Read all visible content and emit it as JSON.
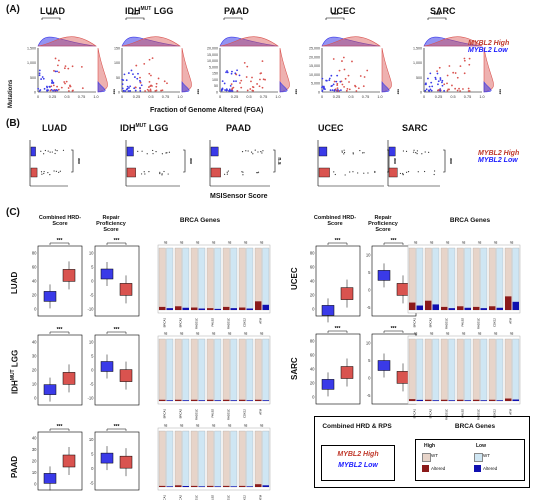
{
  "panelA": {
    "letter": "(A)",
    "ylabel": "Mutations",
    "xlabel": "Fraction of Genome Altered (FGA)",
    "sig": "***",
    "cancers": [
      {
        "name": "LUAD",
        "sup": "",
        "top_sig": "***",
        "yticks": [
          "1,500",
          "1,000",
          "500",
          "0"
        ]
      },
      {
        "name": "IDH",
        "sup": "MUT",
        "suffix": " LGG",
        "top_sig": "***",
        "yticks": [
          "150",
          "100",
          "50",
          "0"
        ]
      },
      {
        "name": "PAAD",
        "sup": "",
        "top_sig": "*",
        "yticks": [
          "20,000",
          "15,000",
          "10,000",
          "5,000",
          "150",
          "100",
          "50",
          "0"
        ]
      },
      {
        "name": "UCEC",
        "sup": "",
        "top_sig": "***",
        "yticks": [
          "25,000",
          "20,000",
          "15,000",
          "10,000",
          "5,000",
          "0"
        ]
      },
      {
        "name": "SARC",
        "sup": "",
        "top_sig": "***",
        "yticks": [
          "1,500",
          "1,000",
          "500",
          "0"
        ]
      }
    ],
    "xticks": [
      "0",
      "0.25",
      "0.5",
      "0.75",
      "1.0"
    ],
    "legend_high": "MYBL2 High",
    "legend_low": "MYBL2 Low"
  },
  "panelB": {
    "letter": "(B)",
    "xlabel": "MSISensor Score",
    "cancers": [
      {
        "name": "LUAD",
        "sup": "",
        "sig": "***"
      },
      {
        "name": "IDH",
        "sup": "MUT",
        "suffix": " LGG",
        "sig": "***"
      },
      {
        "name": "PAAD",
        "sup": "",
        "sig": "n.s"
      },
      {
        "name": "UCEC",
        "sup": "",
        "sig": "***"
      },
      {
        "name": "SARC",
        "sup": "",
        "sig": "***"
      }
    ],
    "legend_high": "MYBL2 High",
    "legend_low": "MYBL2 Low"
  },
  "panelC": {
    "letter": "(C)",
    "col_hrd": "Combined HRD-Score",
    "col_rps": "Repair Proficiency Score",
    "col_brca": "BRCA Genes",
    "sig": "***",
    "ns": "ns",
    "star": "*",
    "genes": [
      "BRCA1",
      "BRCA2",
      "RAD51C",
      "PALB2",
      "RAD51C",
      "CDK12",
      "ATM"
    ],
    "rows": [
      {
        "name": "LUAD",
        "sup": "",
        "hrd_ticks": [
          "80",
          "60",
          "40",
          "20",
          "0"
        ],
        "rps_ticks": [
          "10",
          "5",
          "0",
          "-5",
          "-10"
        ]
      },
      {
        "name": "IDH",
        "sup": "MUT",
        "suffix": " LGG",
        "hrd_ticks": [
          "40",
          "30",
          "20",
          "10",
          "0"
        ],
        "rps_ticks": [
          "10",
          "5",
          "0",
          "-5",
          "-10"
        ]
      },
      {
        "name": "PAAD",
        "sup": "",
        "hrd_ticks": [
          "40",
          "30",
          "20",
          "10",
          "0"
        ],
        "rps_ticks": [
          "10",
          "5",
          "0",
          "-5"
        ]
      },
      {
        "name": "UCEC",
        "sup": "",
        "hrd_ticks": [
          "80",
          "60",
          "40",
          "20",
          "0"
        ],
        "rps_ticks": [
          "10",
          "5",
          "0",
          "-5"
        ]
      },
      {
        "name": "SARC",
        "sup": "",
        "hrd_ticks": [
          "80",
          "60",
          "40",
          "20",
          "0"
        ],
        "rps_ticks": [
          "10",
          "5",
          "0",
          "-5"
        ]
      }
    ],
    "legend": {
      "left_title": "Combined HRD & RPS",
      "high": "MYBL2 High",
      "low": "MYBL2 Low",
      "right_title": "BRCA Genes",
      "high_lbl": "High",
      "low_lbl": "Low",
      "wt": "WT",
      "altered": "Altered"
    }
  },
  "colors": {
    "high": "#d9534f",
    "low": "#3a3ae8",
    "high_text": "#b03a2e",
    "low_text": "#1a1aff",
    "wt_high": "#e7d4c9",
    "wt_low": "#cfe6f3"
  }
}
